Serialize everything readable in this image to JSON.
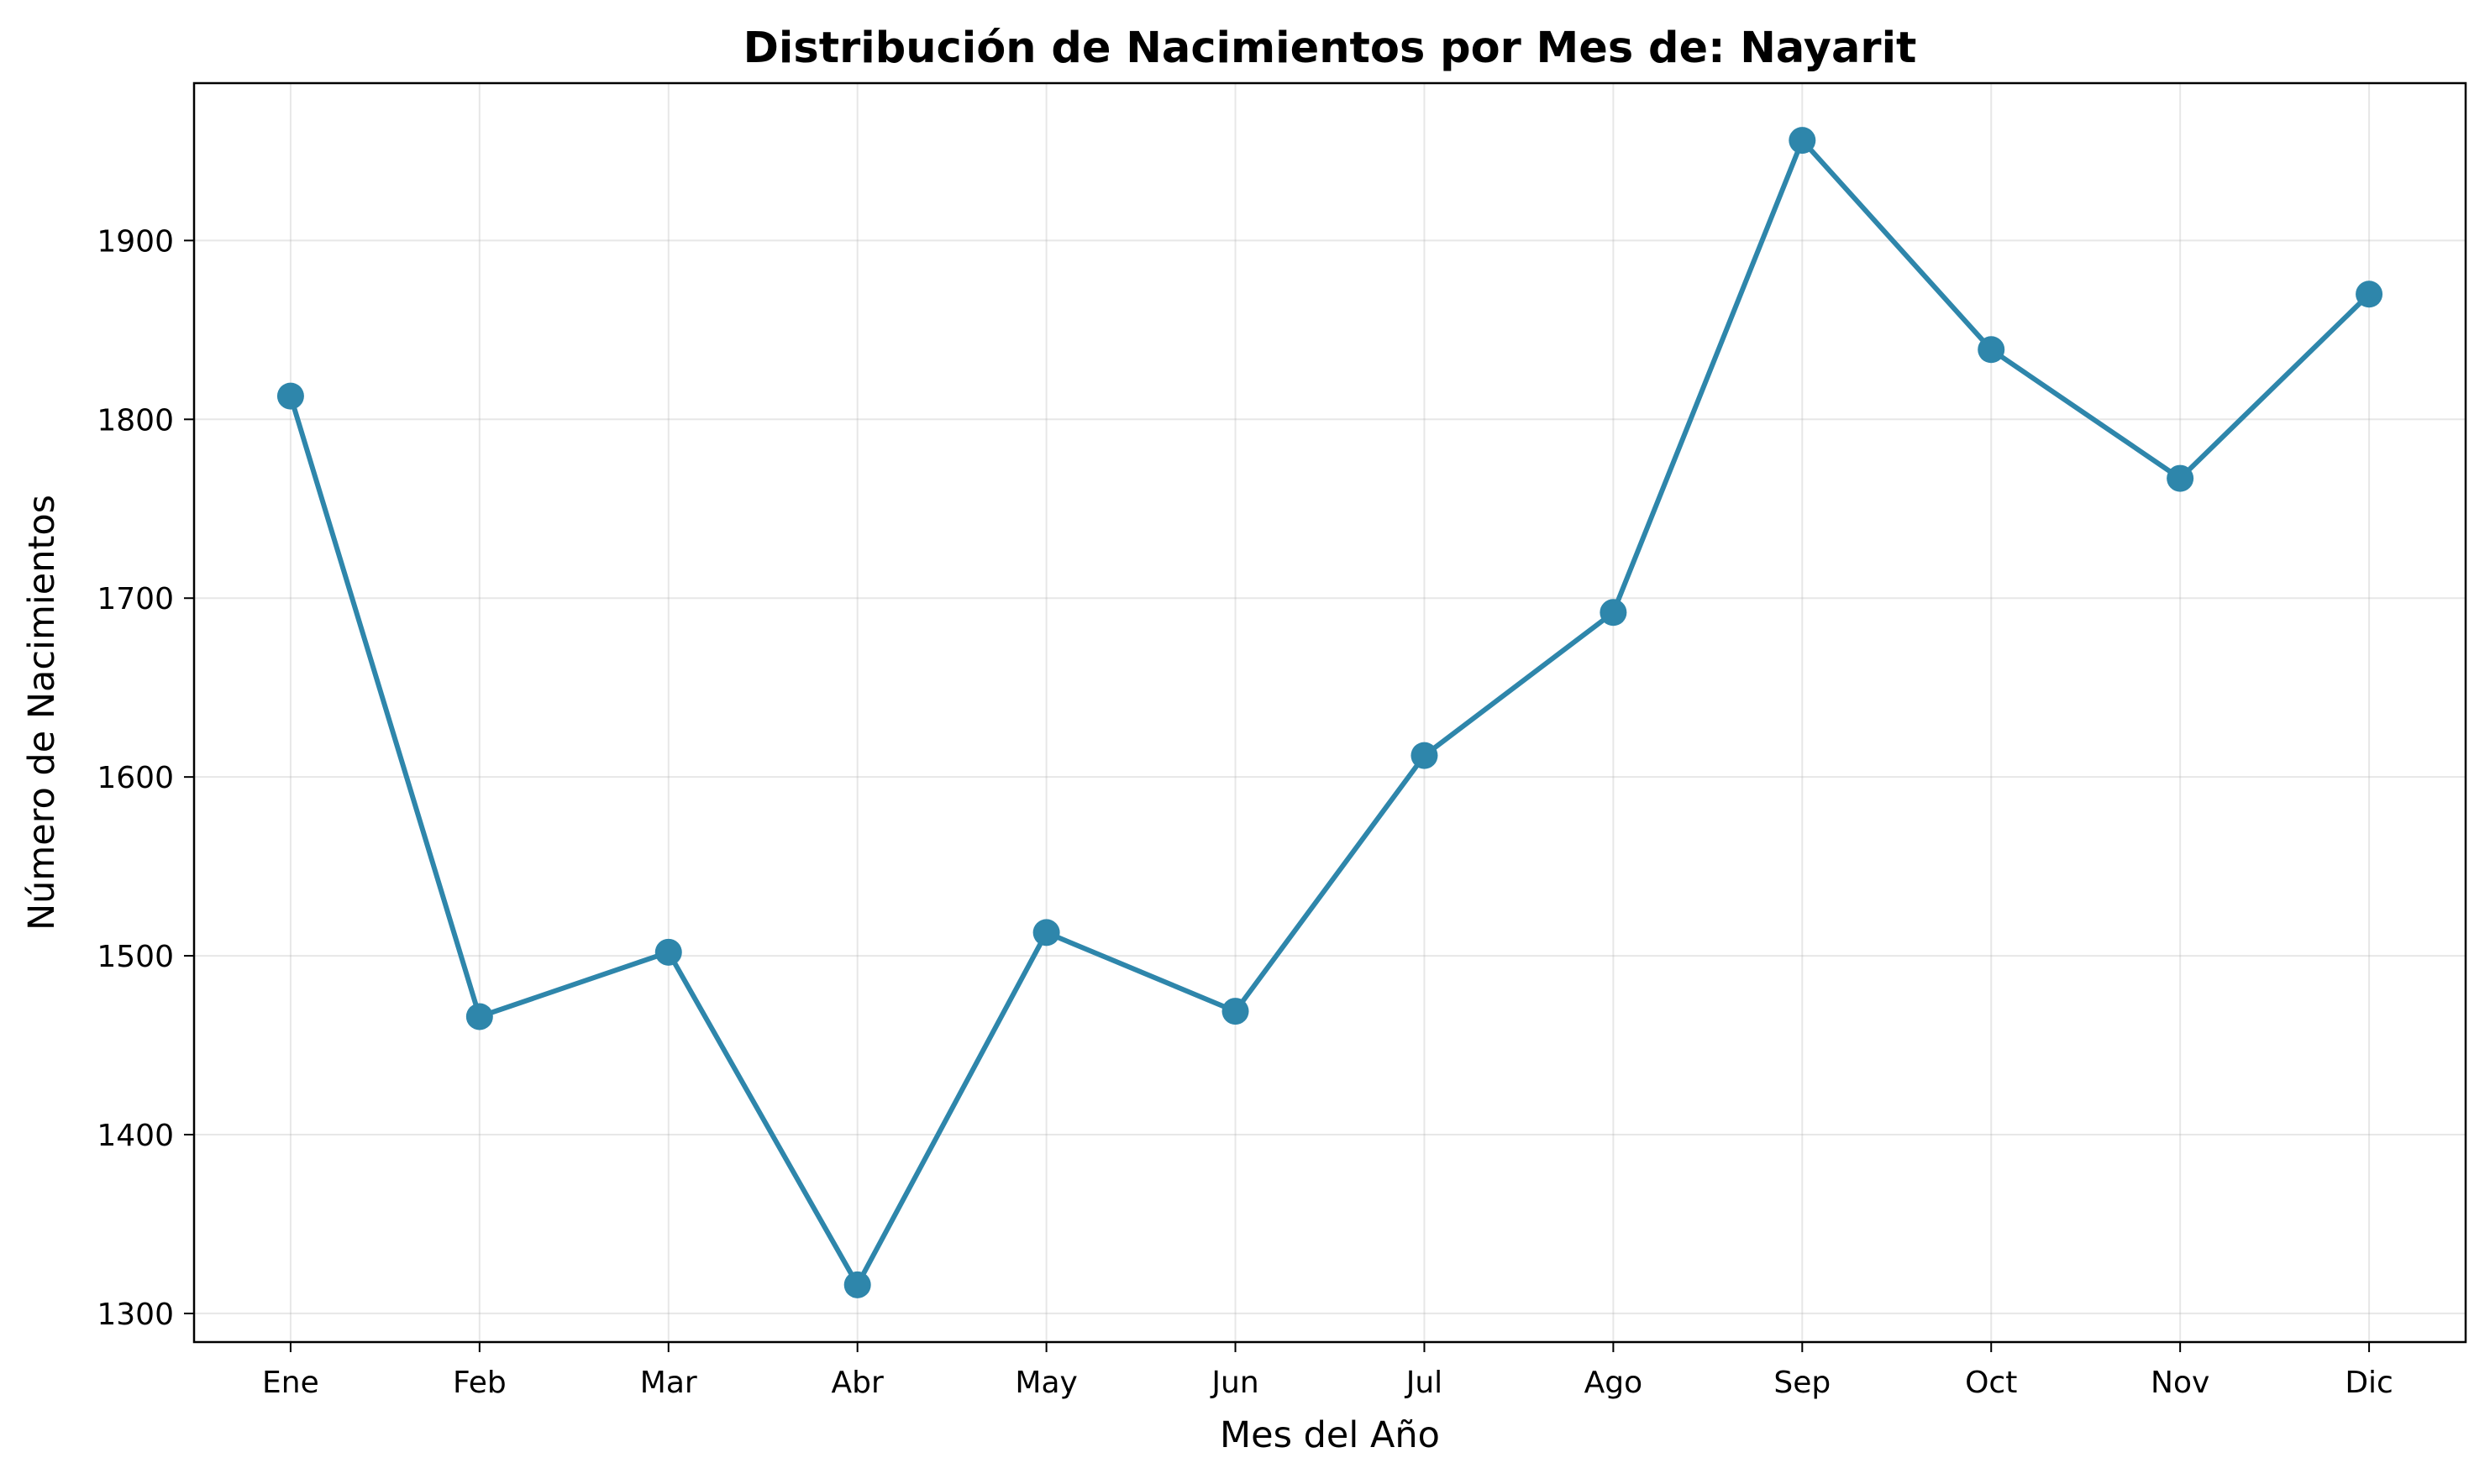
{
  "chart_data": {
    "type": "line",
    "title": "Distribución de Nacimientos por Mes de: Nayarit",
    "xlabel": "Mes del Año",
    "ylabel": "Número de Nacimientos",
    "categories": [
      "Ene",
      "Feb",
      "Mar",
      "Abr",
      "May",
      "Jun",
      "Jul",
      "Ago",
      "Sep",
      "Oct",
      "Nov",
      "Dic"
    ],
    "series": [
      {
        "values": [
          1813,
          1466,
          1502,
          1316,
          1513,
          1469,
          1612,
          1692,
          1956,
          1839,
          1767,
          1870
        ],
        "color": "#2e86ab",
        "marker": "circle"
      }
    ],
    "ylim": [
      1284,
      1988
    ],
    "yticks": [
      1300,
      1400,
      1500,
      1600,
      1700,
      1800,
      1900
    ],
    "grid": true
  }
}
